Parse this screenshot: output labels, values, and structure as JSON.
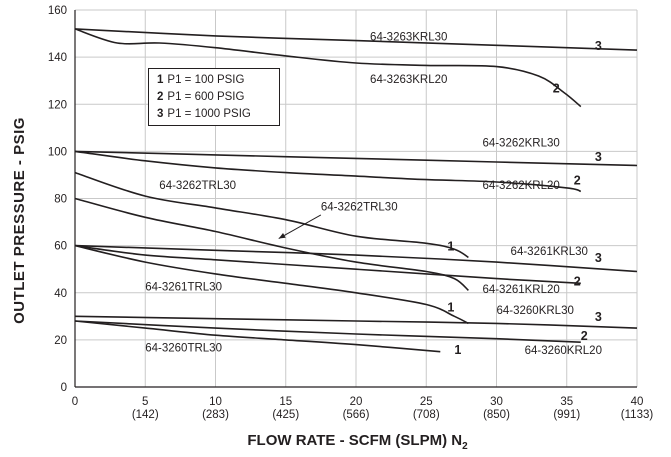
{
  "chart_data": {
    "type": "line",
    "xlabel": "FLOW RATE - SCFM (SLPM) N",
    "xlabel_sub": "2",
    "ylabel": "OUTLET PRESSURE - PSIG",
    "xlim": [
      0,
      40
    ],
    "ylim": [
      0,
      160
    ],
    "grid": true,
    "x_ticks": [
      0,
      5,
      10,
      15,
      20,
      25,
      30,
      35,
      40
    ],
    "x_tick_labels": [
      "0",
      "5",
      "10",
      "15",
      "20",
      "25",
      "30",
      "35",
      "40"
    ],
    "x_tick_sublabels": [
      "",
      "(142)",
      "(283)",
      "(425)",
      "(566)",
      "(708)",
      "(850)",
      "(991)",
      "(1133)"
    ],
    "y_ticks": [
      0,
      20,
      40,
      60,
      80,
      100,
      120,
      140,
      160
    ],
    "y_tick_labels": [
      "0",
      "20",
      "40",
      "60",
      "80",
      "100",
      "120",
      "140",
      "160"
    ],
    "legend": [
      {
        "num": "1",
        "text": "P1 = 100 PSIG"
      },
      {
        "num": "2",
        "text": "P1 = 600 PSIG"
      },
      {
        "num": "3",
        "text": "P1 = 1000 PSIG"
      }
    ],
    "legend_position": "upper-left",
    "series": [
      {
        "name": "64-3263KRL30",
        "pressure_curve": "3",
        "label_at": [
          21,
          147
        ],
        "num_at": [
          37,
          143
        ],
        "points": [
          [
            0,
            152
          ],
          [
            10,
            149
          ],
          [
            20,
            147
          ],
          [
            30,
            145
          ],
          [
            40,
            143
          ]
        ]
      },
      {
        "name": "64-3263KRL20",
        "pressure_curve": "2",
        "label_at": [
          21,
          129
        ],
        "num_at": [
          34,
          125
        ],
        "points": [
          [
            0,
            152
          ],
          [
            3,
            146
          ],
          [
            6,
            146
          ],
          [
            10,
            144
          ],
          [
            15,
            140.5
          ],
          [
            20,
            137.5
          ],
          [
            25,
            136.5
          ],
          [
            30,
            136
          ],
          [
            33,
            132
          ],
          [
            34.8,
            125
          ],
          [
            36,
            119
          ]
        ]
      },
      {
        "name": "64-3262KRL30",
        "pressure_curve": "3",
        "label_at": [
          29,
          102
        ],
        "num_at": [
          37,
          96
        ],
        "points": [
          [
            0,
            100
          ],
          [
            10,
            98.5
          ],
          [
            20,
            97
          ],
          [
            30,
            95.5
          ],
          [
            40,
            94
          ]
        ]
      },
      {
        "name": "64-3262KRL20",
        "pressure_curve": "2",
        "label_at": [
          29,
          84
        ],
        "num_at": [
          35.5,
          86
        ],
        "points": [
          [
            0,
            100
          ],
          [
            5,
            96
          ],
          [
            10,
            93
          ],
          [
            15,
            91
          ],
          [
            20,
            89.5
          ],
          [
            25,
            88
          ],
          [
            30,
            87
          ],
          [
            35,
            84.5
          ],
          [
            36,
            83
          ]
        ]
      },
      {
        "name": "64-3262TRL30",
        "pressure_curve": "1",
        "label_at": [
          6,
          84
        ],
        "num_at": [
          26.5,
          58
        ],
        "points": [
          [
            0,
            91
          ],
          [
            5,
            81
          ],
          [
            10,
            76
          ],
          [
            15,
            71
          ],
          [
            20,
            64
          ],
          [
            25,
            61
          ],
          [
            27,
            58.5
          ],
          [
            28,
            55
          ]
        ]
      },
      {
        "name": "64-3262TRL30",
        "pressure_curve": "1",
        "label_at": [
          17.5,
          75
        ],
        "num_at": [
          26.5,
          58
        ],
        "arrow": [
          [
            17.5,
            73
          ],
          [
            14.5,
            63
          ]
        ],
        "points": [
          [
            0,
            80
          ],
          [
            5,
            72
          ],
          [
            10,
            66
          ],
          [
            15,
            59
          ],
          [
            20,
            53
          ],
          [
            25,
            49
          ],
          [
            27,
            46
          ],
          [
            28,
            41
          ]
        ]
      },
      {
        "name": "64-3261KRL30",
        "pressure_curve": "3",
        "label_at": [
          31,
          56
        ],
        "num_at": [
          37,
          53
        ],
        "points": [
          [
            0,
            60
          ],
          [
            10,
            58
          ],
          [
            20,
            56
          ],
          [
            30,
            53
          ],
          [
            40,
            49
          ]
        ]
      },
      {
        "name": "64-3261KRL20",
        "pressure_curve": "2",
        "label_at": [
          29,
          40
        ],
        "num_at": [
          35.5,
          43
        ],
        "points": [
          [
            0,
            60
          ],
          [
            5,
            56
          ],
          [
            10,
            54
          ],
          [
            15,
            52
          ],
          [
            20,
            50
          ],
          [
            25,
            48
          ],
          [
            30,
            46
          ],
          [
            36,
            44
          ]
        ]
      },
      {
        "name": "64-3261TRL30",
        "pressure_curve": "1",
        "label_at": [
          5,
          41
        ],
        "num_at": [
          26.5,
          32
        ],
        "points": [
          [
            0,
            60
          ],
          [
            5,
            53
          ],
          [
            10,
            48
          ],
          [
            15,
            44
          ],
          [
            20,
            40
          ],
          [
            25,
            35
          ],
          [
            27,
            30
          ],
          [
            28,
            27
          ]
        ]
      },
      {
        "name": "64-3260KRL30",
        "pressure_curve": "3",
        "label_at": [
          30,
          31
        ],
        "num_at": [
          37,
          28
        ],
        "points": [
          [
            0,
            30
          ],
          [
            10,
            29
          ],
          [
            20,
            28
          ],
          [
            30,
            27
          ],
          [
            40,
            25
          ]
        ]
      },
      {
        "name": "64-3260KRL20",
        "pressure_curve": "2",
        "label_at": [
          32,
          14
        ],
        "num_at": [
          36,
          20
        ],
        "points": [
          [
            0,
            28
          ],
          [
            10,
            25
          ],
          [
            20,
            22.5
          ],
          [
            30,
            20.5
          ],
          [
            36,
            19
          ]
        ]
      },
      {
        "name": "64-3260TRL30",
        "pressure_curve": "1",
        "label_at": [
          5,
          15
        ],
        "num_at": [
          27,
          14
        ],
        "points": [
          [
            0,
            28
          ],
          [
            5,
            25
          ],
          [
            10,
            22
          ],
          [
            15,
            20
          ],
          [
            20,
            18
          ],
          [
            26,
            15
          ]
        ]
      }
    ]
  }
}
